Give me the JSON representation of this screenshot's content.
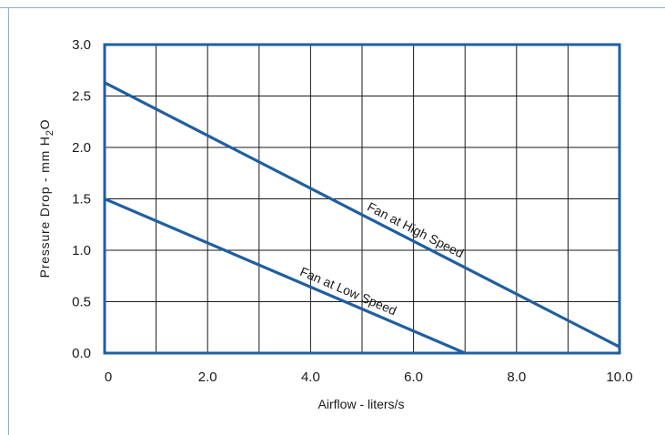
{
  "colors": {
    "plot_border": "#1f5fa0",
    "series": "#1f5fa0",
    "grid": "#1a1a1a",
    "frame": "#8fb0c8"
  },
  "chart_data": {
    "type": "line",
    "title": "",
    "xlabel": "Airflow - liters/s",
    "ylabel": "Pressure Drop - mm H",
    "ylabel_subscript": "2",
    "ylabel_suffix": "O",
    "xlim": [
      0,
      10
    ],
    "ylim": [
      0,
      3
    ],
    "grid": true,
    "x_ticks": [
      0,
      1,
      2,
      3,
      4,
      5,
      6,
      7,
      8,
      9,
      10
    ],
    "x_tick_labels": [
      {
        "value": 0,
        "label": "0"
      },
      {
        "value": 2,
        "label": "2.0"
      },
      {
        "value": 4,
        "label": "4.0"
      },
      {
        "value": 6,
        "label": "6.0"
      },
      {
        "value": 8,
        "label": "8.0"
      },
      {
        "value": 10,
        "label": "10.0"
      }
    ],
    "y_ticks": [
      0,
      0.5,
      1,
      1.5,
      2,
      2.5,
      3
    ],
    "y_tick_labels": [
      {
        "value": 0,
        "label": "0.0"
      },
      {
        "value": 0.5,
        "label": "0.5"
      },
      {
        "value": 1,
        "label": "1.0"
      },
      {
        "value": 1.5,
        "label": "1.5"
      },
      {
        "value": 2,
        "label": "2.0"
      },
      {
        "value": 2.5,
        "label": "2.5"
      },
      {
        "value": 3,
        "label": "3.0"
      }
    ],
    "series": [
      {
        "name": "Fan at High Speed",
        "x": [
          0,
          10
        ],
        "y": [
          2.63,
          0.06
        ]
      },
      {
        "name": "Fan at Low Speed",
        "x": [
          0,
          7
        ],
        "y": [
          1.5,
          0.0
        ]
      }
    ]
  }
}
